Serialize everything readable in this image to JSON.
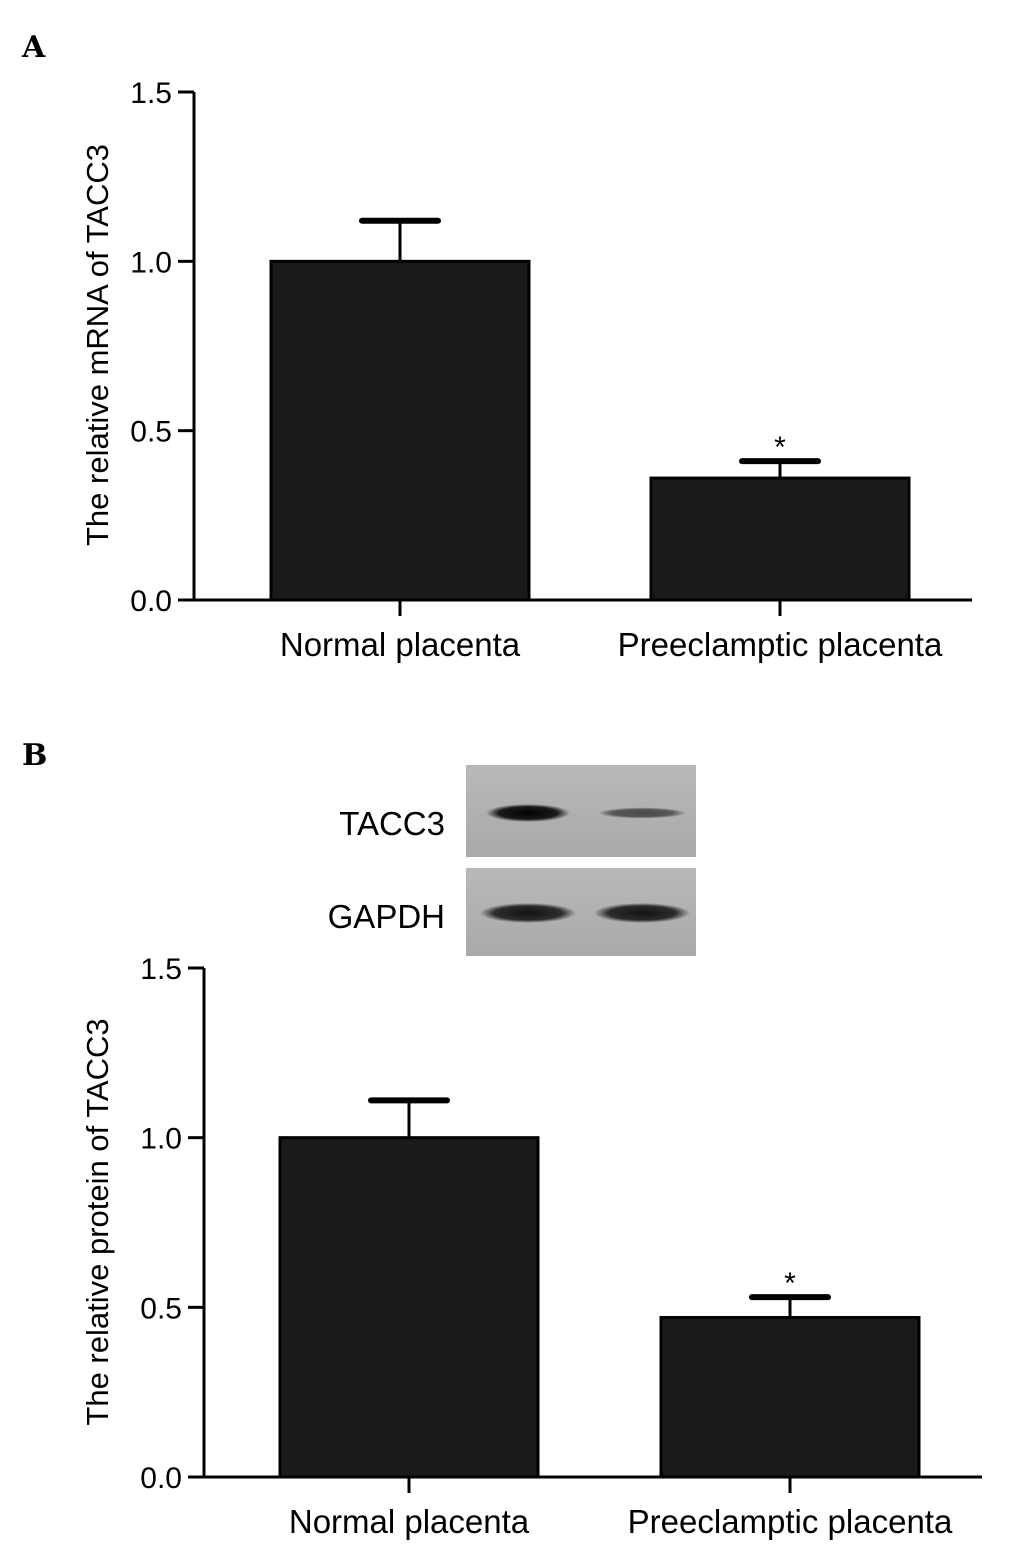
{
  "chart_data": [
    {
      "panel": "A",
      "type": "bar",
      "categories": [
        "Normal placenta",
        "Preeclamptic placenta"
      ],
      "values": [
        1.0,
        0.36
      ],
      "errors": [
        0.12,
        0.05
      ],
      "significance": [
        "",
        "*"
      ],
      "ylabel": "The relative mRNA of TACC3",
      "ylim": [
        0,
        1.5
      ],
      "yticks": [
        "0.0",
        "0.5",
        "1.0",
        "1.5"
      ],
      "bar_color": "#1a1a1a"
    },
    {
      "panel": "B",
      "type": "bar",
      "categories": [
        "Normal placenta",
        "Preeclamptic placenta"
      ],
      "values": [
        1.0,
        0.47
      ],
      "errors": [
        0.11,
        0.06
      ],
      "significance": [
        "",
        "*"
      ],
      "ylabel": "The relative protein of TACC3",
      "ylim": [
        0,
        1.5
      ],
      "yticks": [
        "0.0",
        "0.5",
        "1.0",
        "1.5"
      ],
      "bar_color": "#1a1a1a",
      "blot": {
        "rows": [
          {
            "label": "TACC3",
            "band_intensity": [
              1.0,
              0.45
            ]
          },
          {
            "label": "GAPDH",
            "band_intensity": [
              0.85,
              0.85
            ]
          }
        ]
      }
    }
  ]
}
